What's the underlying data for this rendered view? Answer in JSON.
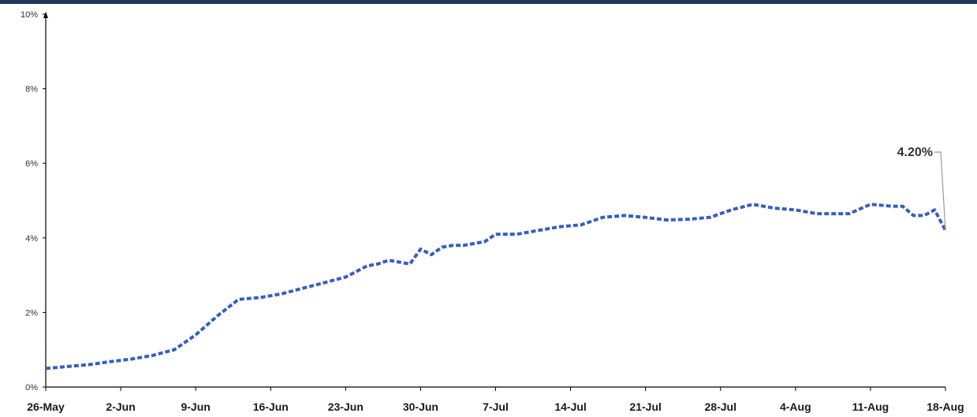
{
  "chart_data": {
    "type": "line",
    "title": "",
    "xlabel": "",
    "ylabel": "",
    "ylim": [
      0,
      10
    ],
    "y_ticks": [
      "0%",
      "2%",
      "4%",
      "6%",
      "8%",
      "10%"
    ],
    "x_ticks": [
      "26-May",
      "2-Jun",
      "9-Jun",
      "16-Jun",
      "23-Jun",
      "30-Jun",
      "7-Jul",
      "14-Jul",
      "21-Jul",
      "28-Jul",
      "4-Aug",
      "11-Aug",
      "18-Aug"
    ],
    "x_range": [
      "26-May",
      "18-Aug"
    ],
    "grid": false,
    "legend": "none",
    "series": [
      {
        "color": "#3a5fb8",
        "style": "dashed",
        "x": [
          "26-May",
          "28-May",
          "30-May",
          "1-Jun",
          "3-Jun",
          "5-Jun",
          "7-Jun",
          "9-Jun",
          "11-Jun",
          "13-Jun",
          "15-Jun",
          "17-Jun",
          "19-Jun",
          "21-Jun",
          "23-Jun",
          "25-Jun",
          "26-Jun",
          "27-Jun",
          "28-Jun",
          "29-Jun",
          "30-Jun",
          "1-Jul",
          "2-Jul",
          "3-Jul",
          "4-Jul",
          "5-Jul",
          "6-Jul",
          "7-Jul",
          "9-Jul",
          "11-Jul",
          "13-Jul",
          "15-Jul",
          "17-Jul",
          "19-Jul",
          "21-Jul",
          "23-Jul",
          "25-Jul",
          "27-Jul",
          "29-Jul",
          "31-Jul",
          "2-Aug",
          "4-Aug",
          "6-Aug",
          "8-Aug",
          "9-Aug",
          "11-Aug",
          "13-Aug",
          "14-Aug",
          "15-Aug",
          "16-Aug",
          "17-Aug",
          "18-Aug"
        ],
        "values": [
          0.5,
          0.55,
          0.6,
          0.68,
          0.75,
          0.85,
          1.0,
          1.4,
          1.9,
          2.35,
          2.4,
          2.5,
          2.65,
          2.8,
          2.95,
          3.25,
          3.3,
          3.4,
          3.35,
          3.3,
          3.7,
          3.55,
          3.75,
          3.8,
          3.8,
          3.85,
          3.9,
          4.1,
          4.1,
          4.2,
          4.3,
          4.35,
          4.55,
          4.6,
          4.55,
          4.48,
          4.5,
          4.55,
          4.75,
          4.9,
          4.8,
          4.75,
          4.65,
          4.65,
          4.65,
          4.9,
          4.85,
          4.85,
          4.6,
          4.6,
          4.75,
          4.2
        ]
      }
    ],
    "annotations": [
      {
        "text": "4.20%",
        "x": "18-Aug",
        "y": 4.2
      }
    ],
    "colors": {
      "line": "#3a5fb8",
      "axis": "#000000",
      "top_bar": "#1f3a5a",
      "leader": "#9a9a9a"
    }
  }
}
